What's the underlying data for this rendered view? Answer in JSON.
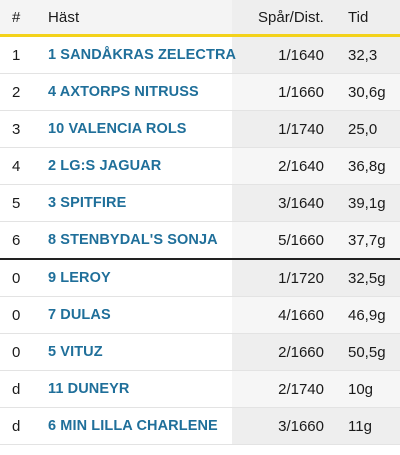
{
  "header": {
    "pos": "#",
    "horse": "Häst",
    "dist": "Spår/Dist.",
    "time": "Tid"
  },
  "rows": [
    {
      "pos": "1",
      "horse": "1 SANDÅKRAS ZELECTRA",
      "dist": "1/1640",
      "time": "32,3"
    },
    {
      "pos": "2",
      "horse": "4 AXTORPS NITRUSS",
      "dist": "1/1660",
      "time": "30,6g"
    },
    {
      "pos": "3",
      "horse": "10 VALENCIA ROLS",
      "dist": "1/1740",
      "time": "25,0"
    },
    {
      "pos": "4",
      "horse": "2 LG:S JAGUAR",
      "dist": "2/1640",
      "time": "36,8g"
    },
    {
      "pos": "5",
      "horse": "3 SPITFIRE",
      "dist": "3/1640",
      "time": "39,1g"
    },
    {
      "pos": "6",
      "horse": "8 STENBYDAL'S SONJA",
      "dist": "5/1660",
      "time": "37,7g"
    },
    {
      "pos": "0",
      "horse": "9 LEROY",
      "dist": "1/1720",
      "time": "32,5g"
    },
    {
      "pos": "0",
      "horse": "7 DULAS",
      "dist": "4/1660",
      "time": "46,9g"
    },
    {
      "pos": "0",
      "horse": "5 VITUZ",
      "dist": "2/1660",
      "time": "50,5g"
    },
    {
      "pos": "d",
      "horse": "11 DUNEYR",
      "dist": "2/1740",
      "time": "10g"
    },
    {
      "pos": "d",
      "horse": "6 MIN LILLA CHARLENE",
      "dist": "3/1660",
      "time": "11g"
    }
  ]
}
